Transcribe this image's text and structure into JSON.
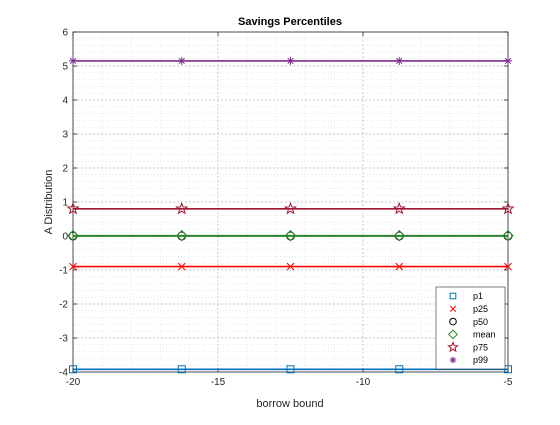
{
  "chart_data": {
    "type": "line",
    "title": "Savings Percentiles",
    "xlabel": "borrow bound",
    "ylabel": "A Distribution",
    "xlim": [
      -20,
      -5
    ],
    "ylim": [
      -4,
      6
    ],
    "xticks": [
      -20,
      -15,
      -10,
      -5
    ],
    "yticks": [
      -4,
      -3,
      -2,
      -1,
      0,
      1,
      2,
      3,
      4,
      5,
      6
    ],
    "grid": "on, with minor dotted grid",
    "legend_position": "bottom-right",
    "x": [
      -20,
      -16.25,
      -12.5,
      -8.75,
      -5
    ],
    "series": [
      {
        "name": "p1",
        "values": [
          -3.92,
          -3.92,
          -3.92,
          -3.92,
          -3.92
        ],
        "color": "#0072BD",
        "marker": "square"
      },
      {
        "name": "p25",
        "values": [
          -0.9,
          -0.9,
          -0.9,
          -0.9,
          -0.9
        ],
        "color": "#FF0000",
        "marker": "x"
      },
      {
        "name": "p50",
        "values": [
          0.0,
          0.0,
          0.0,
          0.0,
          0.0
        ],
        "color": "#000000",
        "marker": "circle"
      },
      {
        "name": "mean",
        "values": [
          0.01,
          0.01,
          0.01,
          0.01,
          0.01
        ],
        "color": "#228B22",
        "marker": "diamond"
      },
      {
        "name": "p75",
        "values": [
          0.8,
          0.8,
          0.8,
          0.8,
          0.8
        ],
        "color": "#A2142F",
        "marker": "star"
      },
      {
        "name": "p99",
        "values": [
          5.15,
          5.15,
          5.15,
          5.15,
          5.15
        ],
        "color": "#7E2F8E",
        "marker": "asterisk"
      }
    ]
  }
}
